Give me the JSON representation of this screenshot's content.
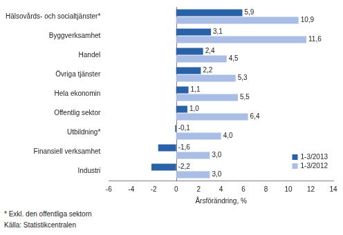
{
  "chart_data": {
    "type": "bar",
    "orientation": "horizontal",
    "categories": [
      "Hälsovårds- och socialtjänster*",
      "Byggverksamhet",
      "Handel",
      "Övriga tjänster",
      "Hela ekonomin",
      "Offentlig sektor",
      "Utbildning*",
      "Finansiell verksamhet",
      "Industri"
    ],
    "series": [
      {
        "name": "1-3/2013",
        "color": "#2a62a8",
        "values": [
          5.9,
          3.1,
          2.4,
          2.2,
          1.1,
          1.0,
          -0.1,
          -1.6,
          -2.2
        ],
        "value_labels": [
          "5,9",
          "3,1",
          "2,4",
          "2,2",
          "1,1",
          "1,0",
          "-0,1",
          "-1,6",
          "-2,2"
        ]
      },
      {
        "name": "1-3/2012",
        "color": "#a9bde6",
        "values": [
          10.9,
          11.6,
          4.5,
          5.3,
          5.5,
          6.4,
          4.0,
          3.0,
          3.0
        ],
        "value_labels": [
          "10,9",
          "11,6",
          "4,5",
          "5,3",
          "5,5",
          "6,4",
          "4,0",
          "3,0",
          "3,0"
        ]
      }
    ],
    "x_label": "Årsförändring, %",
    "xlim": [
      -6,
      14
    ],
    "xticks": [
      -6,
      -4,
      -2,
      0,
      2,
      4,
      6,
      8,
      10,
      12,
      14
    ],
    "grid": false,
    "data_labels": true,
    "legend": "lower right",
    "notes": [
      "* Exkl. den offentliga sektorn",
      "Källa: Statistikcentralen"
    ]
  }
}
